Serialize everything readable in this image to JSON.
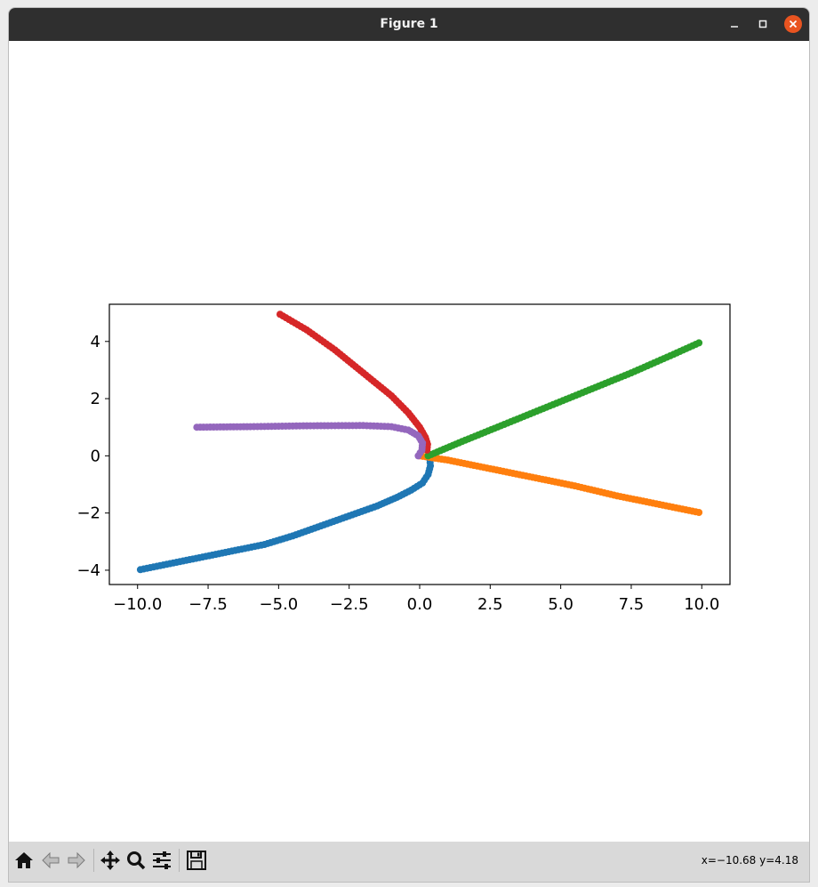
{
  "window": {
    "title": "Figure 1",
    "titlebar_color": "#2f2f2f",
    "close_button_color": "#e95420"
  },
  "toolbar": {
    "buttons": [
      "home-icon",
      "back-icon",
      "forward-icon",
      "pan-icon",
      "zoom-icon",
      "configure-subplots-icon",
      "save-icon"
    ],
    "coords_text": "x=−10.68 y=4.18"
  },
  "chart_data": {
    "type": "scatter",
    "xlim": [
      -11,
      11
    ],
    "ylim": [
      -4.5,
      5.3
    ],
    "xticks": [
      -10.0,
      -7.5,
      -5.0,
      -2.5,
      0.0,
      2.5,
      5.0,
      7.5,
      10.0
    ],
    "xtick_labels": [
      "−10.0",
      "−7.5",
      "−5.0",
      "−2.5",
      "0.0",
      "2.5",
      "5.0",
      "7.5",
      "10.0"
    ],
    "yticks": [
      -4,
      -2,
      0,
      2,
      4
    ],
    "ytick_labels": [
      "−4",
      "−2",
      "0",
      "2",
      "4"
    ],
    "grid": false,
    "series": [
      {
        "color": "#1f77b4",
        "points": [
          [
            -9.9,
            -3.98
          ],
          [
            -8.5,
            -3.7
          ],
          [
            -7.0,
            -3.4
          ],
          [
            -5.5,
            -3.1
          ],
          [
            -4.5,
            -2.8
          ],
          [
            -3.5,
            -2.45
          ],
          [
            -2.5,
            -2.1
          ],
          [
            -1.5,
            -1.75
          ],
          [
            -0.8,
            -1.45
          ],
          [
            -0.3,
            -1.2
          ],
          [
            0.1,
            -0.95
          ],
          [
            0.3,
            -0.65
          ],
          [
            0.38,
            -0.35
          ],
          [
            0.36,
            -0.12
          ]
        ]
      },
      {
        "color": "#ff7f0e",
        "points": [
          [
            0.0,
            0.0
          ],
          [
            1.0,
            -0.15
          ],
          [
            2.5,
            -0.45
          ],
          [
            4.0,
            -0.75
          ],
          [
            5.5,
            -1.05
          ],
          [
            7.0,
            -1.4
          ],
          [
            8.5,
            -1.7
          ],
          [
            9.9,
            -1.98
          ]
        ]
      },
      {
        "color": "#2ca02c",
        "points": [
          [
            0.3,
            0.0
          ],
          [
            1.5,
            0.5
          ],
          [
            3.0,
            1.1
          ],
          [
            4.5,
            1.7
          ],
          [
            6.0,
            2.3
          ],
          [
            7.5,
            2.9
          ],
          [
            9.0,
            3.55
          ],
          [
            9.9,
            3.95
          ]
        ]
      },
      {
        "color": "#d62728",
        "points": [
          [
            -4.95,
            4.95
          ],
          [
            -4.0,
            4.4
          ],
          [
            -3.0,
            3.7
          ],
          [
            -2.0,
            2.9
          ],
          [
            -1.0,
            2.1
          ],
          [
            -0.4,
            1.5
          ],
          [
            0.0,
            1.0
          ],
          [
            0.2,
            0.65
          ],
          [
            0.28,
            0.4
          ],
          [
            0.26,
            0.2
          ]
        ]
      },
      {
        "color": "#9467bd",
        "points": [
          [
            -7.9,
            1.0
          ],
          [
            -6.0,
            1.02
          ],
          [
            -4.0,
            1.05
          ],
          [
            -2.0,
            1.06
          ],
          [
            -1.0,
            1.02
          ],
          [
            -0.4,
            0.9
          ],
          [
            -0.05,
            0.7
          ],
          [
            0.1,
            0.45
          ],
          [
            0.08,
            0.2
          ],
          [
            -0.05,
            0.0
          ]
        ]
      }
    ]
  }
}
